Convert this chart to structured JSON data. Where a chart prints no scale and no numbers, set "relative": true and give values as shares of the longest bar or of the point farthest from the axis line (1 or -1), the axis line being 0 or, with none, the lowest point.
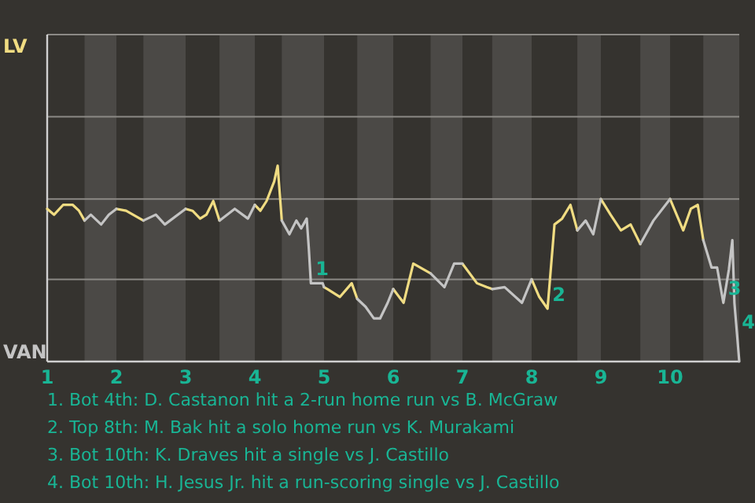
{
  "chart_data": {
    "type": "line",
    "relative": true,
    "x": [
      1,
      1.1,
      1.23,
      1.37,
      1.46,
      1.54,
      1.63,
      1.78,
      1.89,
      2,
      2.14,
      2.39,
      2.57,
      2.7,
      3,
      3.1,
      3.21,
      3.3,
      3.4,
      3.49,
      3.6,
      3.71,
      3.9,
      4,
      4.08,
      4.17,
      4.28,
      4.33,
      4.39,
      4.5,
      4.6,
      4.67,
      4.75,
      4.78,
      4.81,
      4.98,
      5,
      5.05,
      5.23,
      5.4,
      5.48,
      5.6,
      5.72,
      5.81,
      5.92,
      6,
      6.15,
      6.29,
      6.54,
      6.74,
      6.88,
      7,
      7.21,
      7.35,
      7.43,
      7.61,
      7.86,
      8,
      8.11,
      8.23,
      8.33,
      8.44,
      8.56,
      8.66,
      8.78,
      8.89,
      9,
      9.14,
      9.29,
      9.43,
      9.57,
      9.76,
      10,
      10.19,
      10.3,
      10.4,
      10.48,
      10.6,
      10.68,
      10.77,
      10.85,
      10.9,
      10.93,
      10.97,
      11
    ],
    "series": [
      {
        "color": "#f0dc82",
        "values": [
          0.78,
          0.75,
          0.8,
          0.8,
          0.77,
          0.72,
          null,
          null,
          null,
          0.78,
          0.77,
          0.72,
          null,
          null,
          0.78,
          0.77,
          0.73,
          0.75,
          0.82,
          0.72,
          null,
          null,
          null,
          0.8,
          0.77,
          0.82,
          0.92,
          1,
          0.72,
          null,
          null,
          null,
          null,
          null,
          null,
          null,
          0.38,
          0.37,
          0.33,
          0.4,
          0.32,
          null,
          null,
          null,
          null,
          0.37,
          0.3,
          0.5,
          0.45,
          null,
          null,
          0.5,
          0.4,
          0.38,
          0.37,
          null,
          null,
          0.42,
          0.33,
          0.27,
          0.7,
          0.73,
          0.8,
          0.67,
          null,
          null,
          0.83,
          0.75,
          0.67,
          0.7,
          0.6,
          null,
          0.83,
          0.67,
          0.78,
          0.8,
          0.62,
          null,
          null,
          null,
          null,
          null,
          null,
          null,
          null
        ]
      },
      {
        "color": "#c4c4c4",
        "values": [
          null,
          null,
          null,
          null,
          null,
          0.72,
          0.75,
          0.7,
          0.75,
          0.78,
          null,
          0.72,
          0.75,
          0.7,
          0.78,
          null,
          null,
          null,
          null,
          0.72,
          0.75,
          0.78,
          0.73,
          0.8,
          null,
          null,
          null,
          null,
          0.72,
          0.65,
          0.72,
          0.68,
          0.73,
          0.58,
          0.4,
          0.4,
          0.38,
          null,
          null,
          null,
          0.32,
          0.28,
          0.22,
          0.22,
          0.3,
          0.37,
          null,
          null,
          0.45,
          0.38,
          0.5,
          0.5,
          null,
          null,
          0.37,
          0.38,
          0.3,
          0.42,
          null,
          null,
          null,
          null,
          null,
          0.67,
          0.72,
          0.65,
          0.83,
          null,
          null,
          null,
          0.6,
          0.72,
          0.83,
          null,
          null,
          null,
          0.62,
          0.48,
          0.48,
          0.3,
          0.47,
          0.62,
          0.3,
          0.13,
          0
        ]
      }
    ],
    "xlim": [
      1,
      11
    ],
    "xticks": [
      1,
      2,
      3,
      4,
      5,
      6,
      7,
      8,
      9,
      10
    ],
    "ref_lines": [
      {
        "axis": "y",
        "value": 0.42,
        "color": "#8c8a86"
      },
      {
        "axis": "y",
        "value": 0.83,
        "color": "#8c8a86"
      },
      {
        "axis": "y",
        "value": 1.25,
        "color": "#8c8a86"
      },
      {
        "axis": "y",
        "value": 1.67,
        "color": "#8c8a86"
      }
    ],
    "marker": "none",
    "line_style": "solid",
    "bands": [
      {
        "axis": "x",
        "from": 1.54,
        "to": 2,
        "color": "#4b4946"
      },
      {
        "axis": "x",
        "from": 2.39,
        "to": 3,
        "color": "#4b4946"
      },
      {
        "axis": "x",
        "from": 3.49,
        "to": 4,
        "color": "#4b4946"
      },
      {
        "axis": "x",
        "from": 4.39,
        "to": 5,
        "color": "#4b4946"
      },
      {
        "axis": "x",
        "from": 5.48,
        "to": 6,
        "color": "#4b4946"
      },
      {
        "axis": "x",
        "from": 6.54,
        "to": 7,
        "color": "#4b4946"
      },
      {
        "axis": "x",
        "from": 7.43,
        "to": 8,
        "color": "#4b4946"
      },
      {
        "axis": "x",
        "from": 8.66,
        "to": 9,
        "color": "#4b4946"
      },
      {
        "axis": "x",
        "from": 9.57,
        "to": 10,
        "color": "#4b4946"
      },
      {
        "axis": "x",
        "from": 10.48,
        "to": 11,
        "color": "#4b4946"
      }
    ],
    "annotations": [
      "LV",
      "VAN",
      {
        "text": "1",
        "x": 4.81,
        "y": 0.4
      },
      {
        "text": "2",
        "x": 8.23,
        "y": 0.27
      },
      {
        "text": "3",
        "x": 10.77,
        "y": 0.3
      },
      {
        "text": "4",
        "x": 10.97,
        "y": 0.13
      },
      "1. Bot 4th: D. Castanon hit a 2-run home run vs B. McGraw",
      "2. Top 8th: M. Bak hit a solo home run vs K. Murakami",
      "3. Bot 10th: K. Draves hit a single vs J. Castillo",
      "4. Bot 10th: H. Jesus Jr. hit a run-scoring single vs J. Castillo"
    ]
  }
}
